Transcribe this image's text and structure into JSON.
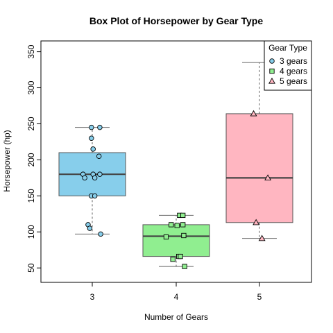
{
  "chart_data": {
    "type": "box",
    "title": "Box Plot of Horsepower by Gear Type",
    "xlabel": "Number of Gears",
    "ylabel": "Horsepower (hp)",
    "categories": [
      "3",
      "4",
      "5"
    ],
    "ylim": [
      30,
      365
    ],
    "yticks": [
      50,
      100,
      150,
      200,
      250,
      300,
      350
    ],
    "legend": {
      "title": "Gear Type",
      "position": "top-right",
      "entries": [
        "3 gears",
        "4 gears",
        "5 gears"
      ]
    },
    "series": [
      {
        "name": "3 gears",
        "color": "#87CEEB",
        "marker": "circle",
        "box": {
          "whisker_low": 97,
          "q1": 150,
          "median": 180,
          "q3": 210,
          "whisker_high": 245
        },
        "points": [
          {
            "x": -0.01,
            "y": 245
          },
          {
            "x": 0.09,
            "y": 245
          },
          {
            "x": -0.01,
            "y": 230
          },
          {
            "x": 0.01,
            "y": 215
          },
          {
            "x": 0.08,
            "y": 205
          },
          {
            "x": -0.11,
            "y": 180
          },
          {
            "x": 0.01,
            "y": 180
          },
          {
            "x": 0.09,
            "y": 180
          },
          {
            "x": -0.09,
            "y": 175
          },
          {
            "x": 0.03,
            "y": 175
          },
          {
            "x": -0.01,
            "y": 150
          },
          {
            "x": 0.03,
            "y": 150
          },
          {
            "x": -0.05,
            "y": 110
          },
          {
            "x": -0.03,
            "y": 105
          },
          {
            "x": 0.1,
            "y": 97
          }
        ]
      },
      {
        "name": "4 gears",
        "color": "#90EE90",
        "marker": "square",
        "box": {
          "whisker_low": 52,
          "q1": 66,
          "median": 94,
          "q3": 110,
          "whisker_high": 123
        },
        "points": [
          {
            "x": 0.04,
            "y": 123
          },
          {
            "x": 0.08,
            "y": 123
          },
          {
            "x": -0.06,
            "y": 110
          },
          {
            "x": 0.01,
            "y": 109
          },
          {
            "x": 0.08,
            "y": 110
          },
          {
            "x": -0.12,
            "y": 93
          },
          {
            "x": 0.09,
            "y": 95
          },
          {
            "x": -0.04,
            "y": 62
          },
          {
            "x": 0.03,
            "y": 66
          },
          {
            "x": 0.05,
            "y": 66
          },
          {
            "x": 0.1,
            "y": 52
          }
        ]
      },
      {
        "name": "5 gears",
        "color": "#FFB6C1",
        "marker": "triangle",
        "box": {
          "whisker_low": 91,
          "q1": 113,
          "median": 175,
          "q3": 264,
          "whisker_high": 335
        },
        "points": [
          {
            "x": -0.07,
            "y": 264
          },
          {
            "x": 0.1,
            "y": 175
          },
          {
            "x": -0.04,
            "y": 113
          },
          {
            "x": 0.03,
            "y": 91
          },
          {
            "x": 0.25,
            "y": 335
          }
        ]
      }
    ]
  }
}
